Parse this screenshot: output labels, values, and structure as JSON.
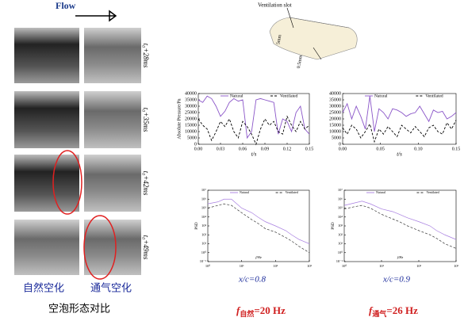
{
  "left": {
    "flow": "Flow",
    "times": [
      "t₀+28ms",
      "t₀+35ms",
      "t₀+42ms",
      "t₀+49ms"
    ],
    "col_labels": [
      "自然空化",
      "通气空化"
    ],
    "caption": "空泡形态对比"
  },
  "diagram": {
    "slot": "Ventilation slot",
    "dim1": "5mm",
    "dim2": "0.5mm"
  },
  "captions": {
    "pos1": "x/c=0.8",
    "pos2": "x/c=0.9",
    "f1": {
      "f": "f",
      "sub": "自然",
      "rest": "=20 Hz"
    },
    "f2": {
      "f": "f",
      "sub": "通气",
      "rest": "=26 Hz"
    }
  },
  "chart_data": [
    {
      "type": "line",
      "xlabel": "t/s",
      "ylabel": "Absolute Pressure/Pa",
      "x": [
        0,
        0.006,
        0.012,
        0.018,
        0.024,
        0.03,
        0.036,
        0.042,
        0.048,
        0.054,
        0.06,
        0.066,
        0.072,
        0.078,
        0.084,
        0.09,
        0.096,
        0.102,
        0.108,
        0.114,
        0.12,
        0.126,
        0.132,
        0.138,
        0.144,
        0.15
      ],
      "xlim": [
        0,
        0.15
      ],
      "xticks": [
        {
          "value": 0,
          "label": "0.00"
        },
        0.03,
        0.06,
        0.09,
        0.12,
        0.15
      ],
      "ylim": [
        0,
        40000
      ],
      "yticks": [
        0,
        5000,
        10000,
        15000,
        20000,
        25000,
        30000,
        35000,
        40000
      ],
      "series": [
        {
          "name": "Natural",
          "color": "#8a55c8",
          "dash": false,
          "values": [
            35000,
            33000,
            38000,
            36000,
            30000,
            22000,
            26000,
            33000,
            36000,
            34000,
            35000,
            5000,
            10000,
            35000,
            36000,
            35000,
            34000,
            33000,
            8000,
            20000,
            18000,
            10000,
            25000,
            30000,
            12000,
            8000
          ]
        },
        {
          "name": "Ventilated",
          "color": "#000000",
          "dash": true,
          "values": [
            20000,
            15000,
            12000,
            3000,
            10000,
            18000,
            14000,
            20000,
            10000,
            5000,
            18000,
            14000,
            8000,
            0,
            12000,
            20000,
            15000,
            18000,
            10000,
            8000,
            22000,
            15000,
            10000,
            18000,
            12000,
            15000
          ]
        }
      ]
    },
    {
      "type": "line",
      "xlabel": "t/s",
      "ylabel": "",
      "x": [
        0,
        0.006,
        0.012,
        0.018,
        0.024,
        0.03,
        0.036,
        0.042,
        0.048,
        0.054,
        0.06,
        0.066,
        0.072,
        0.078,
        0.084,
        0.09,
        0.096,
        0.102,
        0.108,
        0.114,
        0.12,
        0.126,
        0.132,
        0.138,
        0.144,
        0.15
      ],
      "xlim": [
        0,
        0.15
      ],
      "xticks": [
        {
          "value": 0,
          "label": "0.00"
        },
        0.05,
        {
          "value": 0.1,
          "label": "0.10"
        },
        0.15
      ],
      "ylim": [
        0,
        40000
      ],
      "yticks": [
        0,
        5000,
        10000,
        15000,
        20000,
        25000,
        30000,
        35000,
        40000
      ],
      "series": [
        {
          "name": "Natural",
          "color": "#8a55c8",
          "dash": false,
          "values": [
            25000,
            32000,
            20000,
            30000,
            22000,
            12000,
            38000,
            10000,
            28000,
            25000,
            20000,
            28000,
            27000,
            25000,
            22000,
            24000,
            25000,
            30000,
            24000,
            18000,
            27000,
            25000,
            26000,
            20000,
            22000,
            25000
          ]
        },
        {
          "name": "Ventilated",
          "color": "#000000",
          "dash": true,
          "values": [
            13000,
            8000,
            15000,
            12000,
            5000,
            10000,
            16000,
            2000,
            12000,
            8000,
            14000,
            10000,
            6000,
            15000,
            12000,
            9000,
            14000,
            10000,
            6000,
            13000,
            15000,
            10000,
            8000,
            17000,
            12000,
            19000
          ]
        }
      ]
    },
    {
      "type": "loglog",
      "xlabel": "f/Hz",
      "ylabel": "PSD",
      "x": [
        1,
        2,
        3,
        5,
        10,
        20,
        30,
        50,
        100,
        200,
        300,
        500,
        1000
      ],
      "xlim": [
        1,
        1000
      ],
      "xticks": [
        {
          "value": 1,
          "label": "10⁰"
        },
        {
          "value": 10,
          "label": "10¹"
        },
        {
          "value": 100,
          "label": "10²"
        },
        {
          "value": 1000,
          "label": "10³"
        }
      ],
      "ylim": [
        0.1,
        10000000
      ],
      "yticks": [
        {
          "value": 0.1,
          "label": "10⁻¹"
        },
        {
          "value": 1,
          "label": "10⁰"
        },
        {
          "value": 10,
          "label": "10¹"
        },
        {
          "value": 100,
          "label": "10²"
        },
        {
          "value": 1000,
          "label": "10³"
        },
        {
          "value": 10000,
          "label": "10⁴"
        },
        {
          "value": 100000,
          "label": "10⁵"
        },
        {
          "value": 1000000,
          "label": "10⁶"
        },
        {
          "value": 10000000,
          "label": "10⁷"
        }
      ],
      "series": [
        {
          "name": "Natural",
          "color": "#a77ee0",
          "dash": false,
          "values": [
            300000,
            500000,
            1000000,
            1000000,
            100000,
            30000,
            10000,
            3000,
            1000,
            300,
            100,
            30,
            10
          ]
        },
        {
          "name": "Ventilated",
          "color": "#333333",
          "dash": true,
          "values": [
            100000,
            200000,
            300000,
            200000,
            30000,
            5000,
            2000,
            500,
            200,
            50,
            20,
            5,
            1
          ]
        }
      ]
    },
    {
      "type": "loglog",
      "xlabel": "f/Hz",
      "ylabel": "PSD",
      "x": [
        1,
        2,
        3,
        5,
        10,
        20,
        30,
        50,
        100,
        200,
        300,
        500,
        1000
      ],
      "xlim": [
        1,
        1000
      ],
      "xticks": [
        {
          "value": 1,
          "label": "10⁰"
        },
        {
          "value": 10,
          "label": "10¹"
        },
        {
          "value": 100,
          "label": "10²"
        },
        {
          "value": 1000,
          "label": "10³"
        }
      ],
      "ylim": [
        0.1,
        10000000
      ],
      "yticks": [
        {
          "value": 0.1,
          "label": "10⁻¹"
        },
        {
          "value": 1,
          "label": "10⁰"
        },
        {
          "value": 10,
          "label": "10¹"
        },
        {
          "value": 100,
          "label": "10²"
        },
        {
          "value": 1000,
          "label": "10³"
        },
        {
          "value": 10000,
          "label": "10⁴"
        },
        {
          "value": 100000,
          "label": "10⁵"
        },
        {
          "value": 1000000,
          "label": "10⁶"
        },
        {
          "value": 10000000,
          "label": "10⁷"
        }
      ],
      "series": [
        {
          "name": "Natural",
          "color": "#a77ee0",
          "dash": false,
          "values": [
            200000,
            400000,
            600000,
            300000,
            80000,
            40000,
            20000,
            8000,
            3000,
            1000,
            300,
            100,
            30
          ]
        },
        {
          "name": "Ventilated",
          "color": "#333333",
          "dash": true,
          "values": [
            80000,
            150000,
            200000,
            100000,
            20000,
            6000,
            3000,
            1000,
            300,
            100,
            40,
            10,
            3
          ]
        }
      ]
    }
  ]
}
